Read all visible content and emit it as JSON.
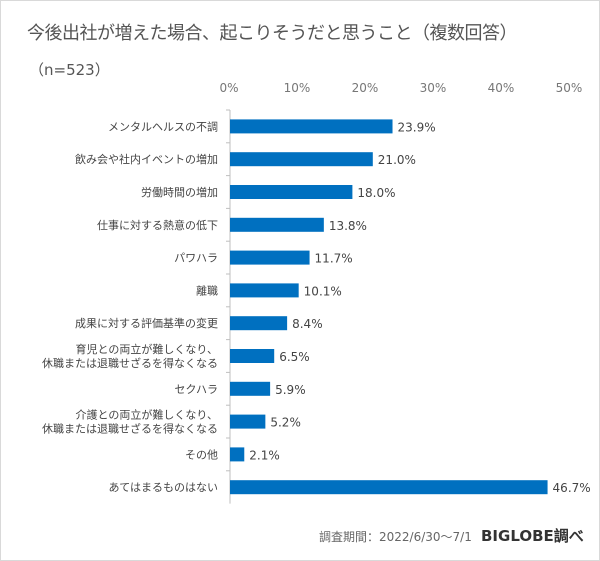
{
  "chart_data": {
    "type": "bar",
    "orientation": "horizontal",
    "title": "今後出社が増えた場合、起こりそうだと思うこと（複数回答）",
    "subtitle": "（n=523）",
    "categories": [
      "メンタルヘルスの不調",
      "飲み会や社内イベントの増加",
      "労働時間の増加",
      "仕事に対する熱意の低下",
      "パワハラ",
      "離職",
      "成果に対する評価基準の変更",
      "育児との両立が難しくなり、\n休職または退職せざるを得なくなる",
      "セクハラ",
      "介護との両立が難しくなり、\n休職または退職せざるを得なくなる",
      "その他",
      "あてはまるものはない"
    ],
    "values": [
      23.9,
      21.0,
      18.0,
      13.8,
      11.7,
      10.1,
      8.4,
      6.5,
      5.9,
      5.2,
      2.1,
      46.7
    ],
    "data_labels": [
      "23.9%",
      "21.0%",
      "18.0%",
      "13.8%",
      "11.7%",
      "10.1%",
      "8.4%",
      "6.5%",
      "5.9%",
      "5.2%",
      "2.1%",
      "46.7%"
    ],
    "xlim": [
      0,
      50
    ],
    "x_ticks": [
      "0%",
      "10%",
      "20%",
      "30%",
      "40%",
      "50%"
    ],
    "x_axis_position": "top",
    "grid": false,
    "bar_color": "#0070c0",
    "footnote": "調査期間：2022/6/30～7/1",
    "source": "BIGLOBE調べ"
  }
}
